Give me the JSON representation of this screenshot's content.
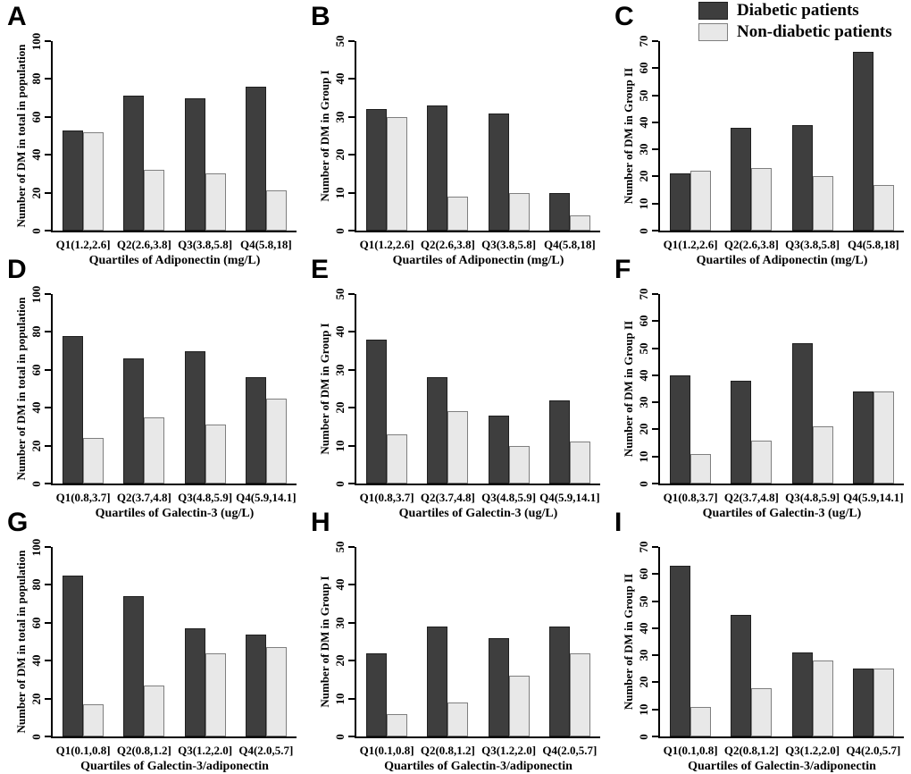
{
  "figure": {
    "colors": {
      "diabetic_fill": "#3e3e3e",
      "diabetic_border": "#1f1f1f",
      "non_diabetic_fill": "#e8e8e8",
      "non_diabetic_border": "#7f7f7f",
      "axis": "#000000",
      "background": "#ffffff"
    },
    "legend": {
      "position": "top-right",
      "items": [
        {
          "label": "Diabetic patients",
          "series": "diabetic"
        },
        {
          "label": "Non-diabetic patients",
          "series": "non_diabetic"
        }
      ]
    }
  },
  "chart_data": [
    {
      "panel": "A",
      "type": "bar",
      "ylabel": "Number of DM in total in population",
      "xlabel": "Quartiles of Adiponectin (mg/L)",
      "ylim": [
        0,
        100
      ],
      "ytick_step": 20,
      "grid": false,
      "categories": [
        "Q1(1.2,2.6]",
        "Q2(2.6,3.8]",
        "Q3(3.8,5.8]",
        "Q4(5.8,18]"
      ],
      "series": [
        {
          "name": "Diabetic patients",
          "values": [
            53,
            71,
            70,
            76
          ]
        },
        {
          "name": "Non-diabetic patients",
          "values": [
            52,
            32,
            30,
            21
          ]
        }
      ]
    },
    {
      "panel": "B",
      "type": "bar",
      "ylabel": "Number of DM in Group I",
      "xlabel": "Quartiles of Adiponectin (mg/L)",
      "ylim": [
        0,
        50
      ],
      "ytick_step": 10,
      "grid": false,
      "categories": [
        "Q1(1.2,2.6]",
        "Q2(2.6,3.8]",
        "Q3(3.8,5.8]",
        "Q4(5.8,18]"
      ],
      "series": [
        {
          "name": "Diabetic patients",
          "values": [
            32,
            33,
            31,
            10
          ]
        },
        {
          "name": "Non-diabetic patients",
          "values": [
            30,
            9,
            10,
            4
          ]
        }
      ]
    },
    {
      "panel": "C",
      "type": "bar",
      "ylabel": "Number of DM in Group II",
      "xlabel": "Quartiles of Adiponectin (mg/L)",
      "ylim": [
        0,
        70
      ],
      "ytick_step": 10,
      "grid": false,
      "categories": [
        "Q1(1.2,2.6]",
        "Q2(2.6,3.8]",
        "Q3(3.8,5.8]",
        "Q4(5.8,18]"
      ],
      "series": [
        {
          "name": "Diabetic patients",
          "values": [
            21,
            38,
            39,
            66
          ]
        },
        {
          "name": "Non-diabetic patients",
          "values": [
            22,
            23,
            20,
            17
          ]
        }
      ]
    },
    {
      "panel": "D",
      "type": "bar",
      "ylabel": "Number of DM in total in population",
      "xlabel": "Quartiles of Galectin-3 (ug/L)",
      "ylim": [
        0,
        100
      ],
      "ytick_step": 20,
      "grid": false,
      "categories": [
        "Q1(0.8,3.7]",
        "Q2(3.7,4.8]",
        "Q3(4.8,5.9]",
        "Q4(5.9,14.1]"
      ],
      "series": [
        {
          "name": "Diabetic patients",
          "values": [
            78,
            66,
            70,
            56
          ]
        },
        {
          "name": "Non-diabetic patients",
          "values": [
            24,
            35,
            31,
            45
          ]
        }
      ]
    },
    {
      "panel": "E",
      "type": "bar",
      "ylabel": "Number of DM in Group I",
      "xlabel": "Quartiles of Galectin-3 (ug/L)",
      "ylim": [
        0,
        50
      ],
      "ytick_step": 10,
      "grid": false,
      "categories": [
        "Q1(0.8,3.7]",
        "Q2(3.7,4.8]",
        "Q3(4.8,5.9]",
        "Q4(5.9,14.1]"
      ],
      "series": [
        {
          "name": "Diabetic patients",
          "values": [
            38,
            28,
            18,
            22
          ]
        },
        {
          "name": "Non-diabetic patients",
          "values": [
            13,
            19,
            10,
            11
          ]
        }
      ]
    },
    {
      "panel": "F",
      "type": "bar",
      "ylabel": "Number of DM in Group II",
      "xlabel": "Quartiles of Galectin-3 (ug/L)",
      "ylim": [
        0,
        70
      ],
      "ytick_step": 10,
      "grid": false,
      "categories": [
        "Q1(0.8,3.7]",
        "Q2(3.7,4.8]",
        "Q3(4.8,5.9]",
        "Q4(5.9,14.1]"
      ],
      "series": [
        {
          "name": "Diabetic patients",
          "values": [
            40,
            38,
            52,
            34
          ]
        },
        {
          "name": "Non-diabetic patients",
          "values": [
            11,
            16,
            21,
            34
          ]
        }
      ]
    },
    {
      "panel": "G",
      "type": "bar",
      "ylabel": "Number of DM in total in population",
      "xlabel": "Quartiles of Galectin-3/adiponectin",
      "ylim": [
        0,
        100
      ],
      "ytick_step": 20,
      "grid": false,
      "categories": [
        "Q1(0.1,0.8]",
        "Q2(0.8,1.2]",
        "Q3(1.2,2.0]",
        "Q4(2.0,5.7]"
      ],
      "series": [
        {
          "name": "Diabetic patients",
          "values": [
            85,
            74,
            57,
            54
          ]
        },
        {
          "name": "Non-diabetic patients",
          "values": [
            17,
            27,
            44,
            47
          ]
        }
      ]
    },
    {
      "panel": "H",
      "type": "bar",
      "ylabel": "Number of DM in Group I",
      "xlabel": "Quartiles of Galectin-3/adiponectin",
      "ylim": [
        0,
        50
      ],
      "ytick_step": 10,
      "grid": false,
      "categories": [
        "Q1(0.1,0.8]",
        "Q2(0.8,1.2]",
        "Q3(1.2,2.0]",
        "Q4(2.0,5.7]"
      ],
      "series": [
        {
          "name": "Diabetic patients",
          "values": [
            22,
            29,
            26,
            29
          ]
        },
        {
          "name": "Non-diabetic patients",
          "values": [
            6,
            9,
            16,
            22
          ]
        }
      ]
    },
    {
      "panel": "I",
      "type": "bar",
      "ylabel": "Number of DM in Group II",
      "xlabel": "Quartiles of Galectin-3/adiponectin",
      "ylim": [
        0,
        70
      ],
      "ytick_step": 10,
      "grid": false,
      "categories": [
        "Q1(0.1,0.8]",
        "Q2(0.8,1.2]",
        "Q3(1.2,2.0]",
        "Q4(2.0,5.7]"
      ],
      "series": [
        {
          "name": "Diabetic patients",
          "values": [
            63,
            45,
            31,
            25
          ]
        },
        {
          "name": "Non-diabetic patients",
          "values": [
            11,
            18,
            28,
            25
          ]
        }
      ]
    }
  ]
}
